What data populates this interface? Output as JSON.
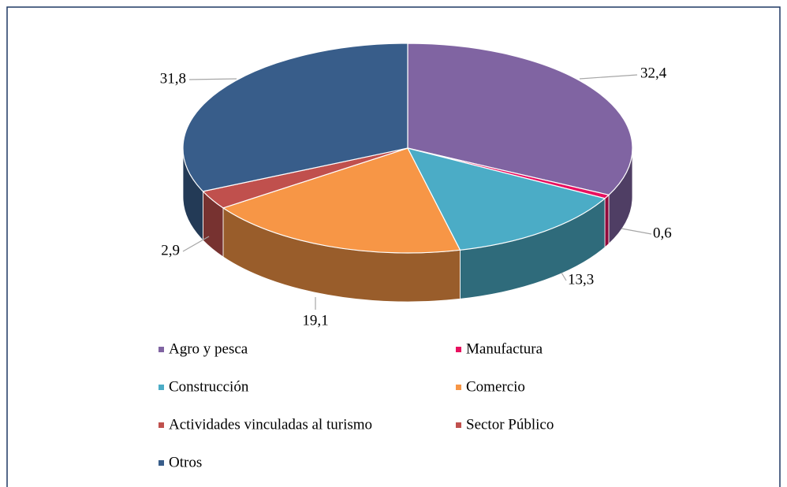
{
  "chart_data": {
    "type": "pie3d",
    "categories": [
      "Agro y pesca",
      "Manufactura",
      "Construcción",
      "Comercio",
      "Actividades vinculadas al turismo",
      "Sector Público",
      "Otros"
    ],
    "values": [
      32.4,
      0.6,
      13.3,
      19.1,
      2.9,
      0,
      31.8
    ],
    "value_labels": [
      "32,4",
      "0,6",
      "13,3",
      "19,1",
      "2,9",
      null,
      "31,8"
    ],
    "colors": [
      "#8064a2",
      "#e8105f",
      "#4bacc6",
      "#f79646",
      "#c0504d",
      "#c0504d",
      "#385d8a"
    ],
    "legend": "bottom"
  }
}
